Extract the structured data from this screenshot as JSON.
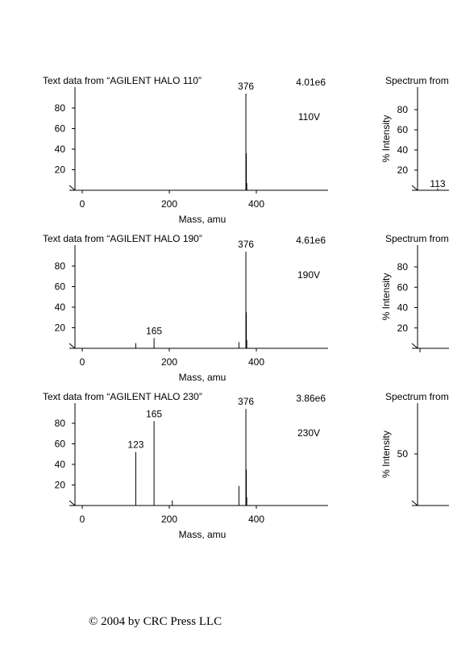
{
  "page": {
    "copyright": "© 2004 by CRC Press LLC"
  },
  "chart_data": [
    {
      "type": "bar",
      "title": "Text data from “AGILENT HALO 110”",
      "intensity": "4.01e6",
      "voltage": "110V",
      "xlabel": "Mass, amu",
      "ylabel": "",
      "xlim": [
        -25,
        565
      ],
      "ylim": [
        0,
        100
      ],
      "xticks": [
        0,
        200,
        400
      ],
      "yticks": [
        20,
        40,
        60,
        80
      ],
      "peaks": [
        {
          "mass": 376,
          "value": 94,
          "label": "376"
        },
        {
          "mass": 377,
          "value": 36,
          "label": ""
        },
        {
          "mass": 378,
          "value": 7,
          "label": ""
        }
      ]
    },
    {
      "type": "bar",
      "title": "Text data from “AGILENT HALO 190”",
      "intensity": "4.61e6",
      "voltage": "190V",
      "xlabel": "Mass, amu",
      "ylabel": "",
      "xlim": [
        -25,
        565
      ],
      "ylim": [
        0,
        100
      ],
      "xticks": [
        0,
        200,
        400
      ],
      "yticks": [
        20,
        40,
        60,
        80
      ],
      "peaks": [
        {
          "mass": 123,
          "value": 5,
          "label": ""
        },
        {
          "mass": 165,
          "value": 10,
          "label": "165"
        },
        {
          "mass": 360,
          "value": 6,
          "label": ""
        },
        {
          "mass": 376,
          "value": 94,
          "label": "376"
        },
        {
          "mass": 377,
          "value": 35,
          "label": ""
        },
        {
          "mass": 378,
          "value": 8,
          "label": ""
        }
      ]
    },
    {
      "type": "bar",
      "title": "Text data from “AGILENT HALO 230”",
      "intensity": "3.86e6",
      "voltage": "230V",
      "xlabel": "Mass, amu",
      "ylabel": "",
      "xlim": [
        -25,
        565
      ],
      "ylim": [
        0,
        100
      ],
      "xticks": [
        0,
        200,
        400
      ],
      "yticks": [
        20,
        40,
        60,
        80
      ],
      "peaks": [
        {
          "mass": 123,
          "value": 52,
          "label": "123"
        },
        {
          "mass": 165,
          "value": 82,
          "label": "165"
        },
        {
          "mass": 207,
          "value": 5,
          "label": ""
        },
        {
          "mass": 360,
          "value": 19,
          "label": ""
        },
        {
          "mass": 376,
          "value": 94,
          "label": "376"
        },
        {
          "mass": 377,
          "value": 35,
          "label": ""
        },
        {
          "mass": 378,
          "value": 8,
          "label": ""
        }
      ]
    },
    {
      "type": "bar",
      "title": "Spectrum from",
      "xlabel": "",
      "ylabel": "% Intensity",
      "ylim": [
        0,
        100
      ],
      "yticks": [
        20,
        40,
        60,
        80
      ],
      "peaks": [
        {
          "mass": 113,
          "value": 2,
          "label": "113"
        }
      ]
    },
    {
      "type": "bar",
      "title": "Spectrum from",
      "xlabel": "",
      "ylabel": "% Intensity",
      "ylim": [
        0,
        100
      ],
      "yticks": [
        20,
        40,
        60,
        80
      ],
      "peaks": []
    },
    {
      "type": "bar",
      "title": "Spectrum from",
      "xlabel": "",
      "ylabel": "% Intensity",
      "ylim": [
        0,
        100
      ],
      "yticks": [
        50
      ],
      "peaks": []
    }
  ]
}
